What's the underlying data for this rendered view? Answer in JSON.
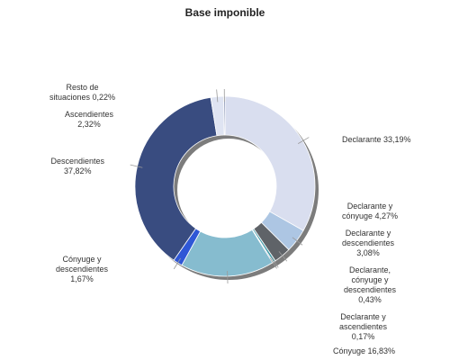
{
  "chart_data": {
    "type": "pie",
    "style": "donut",
    "title": "Base imponible",
    "slices": [
      {
        "label": "Declarante 33,19%",
        "value": 33.19,
        "color": "#d9deef"
      },
      {
        "label": "Declarante y\ncónyuge 4,27%",
        "value": 4.27,
        "color": "#adc6e3"
      },
      {
        "label": "Declarante y\ndescendientes\n3,08%",
        "value": 3.08,
        "color": "#5f6368"
      },
      {
        "label": "Declarante,\ncónyuge y\ndescendientes\n0,43%",
        "value": 0.43,
        "color": "#3f9aa8"
      },
      {
        "label": "Declarante y\nascendientes\n0,17%",
        "value": 0.17,
        "color": "#2f3a6b"
      },
      {
        "label": "Cónyuge 16,83%",
        "value": 16.83,
        "color": "#86bccf"
      },
      {
        "label": "Cónyuge y\ndescendientes\n1,67%",
        "value": 1.67,
        "color": "#2f57d6"
      },
      {
        "label": "Descendientes\n37,82%",
        "value": 37.82,
        "color": "#394c80"
      },
      {
        "label": "Ascendientes\n2,32%",
        "value": 2.32,
        "color": "#dfe4f2"
      },
      {
        "label": "Resto de\nsituaciones 0,22%",
        "value": 0.22,
        "color": "#394c80"
      }
    ]
  }
}
